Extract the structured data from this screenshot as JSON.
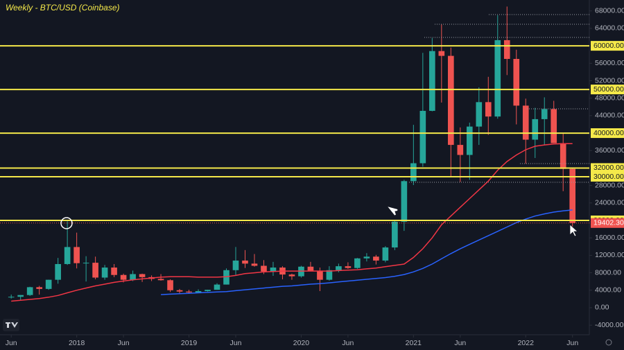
{
  "chart_data": {
    "type": "candlestick",
    "title": "Weekly - BTC/USD (Coinbase)",
    "x": [
      "2017-06",
      "2017-07",
      "2017-08",
      "2017-09",
      "2017-10",
      "2017-11",
      "2017-12",
      "2018-01",
      "2018-02",
      "2018-03",
      "2018-04",
      "2018-05",
      "2018-06",
      "2018-07",
      "2018-08",
      "2018-09",
      "2018-10",
      "2018-11",
      "2018-12",
      "2019-01",
      "2019-02",
      "2019-03",
      "2019-04",
      "2019-05",
      "2019-06",
      "2019-07",
      "2019-08",
      "2019-09",
      "2019-10",
      "2019-11",
      "2019-12",
      "2020-01",
      "2020-02",
      "2020-03",
      "2020-04",
      "2020-05",
      "2020-06",
      "2020-07",
      "2020-08",
      "2020-09",
      "2020-10",
      "2020-11",
      "2020-12",
      "2021-01",
      "2021-02",
      "2021-03",
      "2021-04",
      "2021-05",
      "2021-06",
      "2021-07",
      "2021-08",
      "2021-09",
      "2021-10",
      "2021-11",
      "2021-12",
      "2022-01",
      "2022-02",
      "2022-03",
      "2022-04",
      "2022-05",
      "2022-06"
    ],
    "open": [
      2400,
      2500,
      2900,
      4700,
      4300,
      6400,
      10000,
      13900,
      10200,
      10300,
      6900,
      9200,
      7500,
      6400,
      7700,
      7000,
      6600,
      6300,
      4000,
      3700,
      3500,
      3800,
      4100,
      5300,
      8600,
      10800,
      10100,
      9600,
      8300,
      9200,
      7600,
      7200,
      9400,
      8500,
      6400,
      8600,
      9500,
      9100,
      11300,
      11700,
      10800,
      13800,
      19700,
      29000,
      33100,
      45100,
      58800,
      57700,
      37300,
      35000,
      41500,
      47100,
      43800,
      61300,
      57000,
      46300,
      38500,
      43200,
      45500,
      37700,
      31800
    ],
    "high": [
      3000,
      2900,
      4800,
      5000,
      6400,
      11400,
      19800,
      17200,
      11800,
      11700,
      9800,
      10000,
      7800,
      8500,
      7800,
      7400,
      7700,
      6500,
      4300,
      4100,
      4200,
      4100,
      5600,
      9000,
      13900,
      13200,
      12300,
      10900,
      10500,
      9500,
      7800,
      9600,
      10500,
      9200,
      9500,
      10100,
      10400,
      11400,
      12500,
      12100,
      14100,
      19900,
      29300,
      41900,
      58400,
      61800,
      64900,
      59600,
      41300,
      42400,
      50500,
      52900,
      67000,
      69000,
      59100,
      47900,
      45800,
      48200,
      47400,
      40000,
      31900
    ],
    "low": [
      2100,
      1800,
      2700,
      3000,
      4100,
      5500,
      9800,
      9000,
      6000,
      6500,
      6400,
      7000,
      5800,
      6100,
      5900,
      6100,
      6200,
      3600,
      3100,
      3400,
      3400,
      3700,
      4100,
      5300,
      7500,
      9100,
      9400,
      7700,
      7300,
      6500,
      6400,
      6900,
      8500,
      3800,
      6200,
      8100,
      8900,
      8900,
      10600,
      9900,
      10400,
      13200,
      17600,
      28100,
      32300,
      45000,
      47000,
      30000,
      28800,
      29300,
      37300,
      39600,
      43300,
      53300,
      42000,
      33000,
      34300,
      37200,
      37700,
      26700,
      17600
    ],
    "close": [
      2500,
      2900,
      4700,
      4300,
      6400,
      10000,
      13900,
      10200,
      10300,
      6900,
      9200,
      7500,
      6400,
      7700,
      7000,
      6600,
      6300,
      4000,
      3700,
      3500,
      3800,
      4100,
      5300,
      8600,
      10800,
      10100,
      9600,
      8300,
      9200,
      7600,
      7200,
      9400,
      8500,
      6400,
      8600,
      9500,
      9100,
      11300,
      11700,
      10800,
      13800,
      19700,
      29000,
      33100,
      45100,
      58800,
      57700,
      37300,
      35000,
      41500,
      47100,
      43800,
      61300,
      57000,
      46300,
      38500,
      43200,
      45500,
      37700,
      31800,
      19400
    ],
    "up_color": "#26a69a",
    "down_color": "#ef5350",
    "series": [
      {
        "color": "#f23645",
        "values": [
          1500,
          1700,
          1900,
          2100,
          2400,
          2800,
          3400,
          4000,
          4500,
          5000,
          5400,
          5800,
          6100,
          6400,
          6600,
          6800,
          7000,
          7100,
          7100,
          7100,
          7000,
          7000,
          7000,
          7100,
          7400,
          7800,
          8000,
          8200,
          8300,
          8400,
          8400,
          8400,
          8400,
          8400,
          8400,
          8500,
          8600,
          8700,
          8900,
          9100,
          9400,
          9700,
          10000,
          11500,
          13500,
          16000,
          19000,
          21000,
          23000,
          25000,
          27000,
          29000,
          31500,
          33500,
          35000,
          36200,
          37000,
          37300,
          37500,
          37600,
          37600
        ]
      },
      {
        "color": "#2962ff",
        "values": [
          null,
          null,
          null,
          null,
          null,
          null,
          null,
          null,
          null,
          null,
          null,
          null,
          null,
          null,
          null,
          null,
          3000,
          3100,
          3200,
          3300,
          3400,
          3500,
          3600,
          3700,
          3900,
          4100,
          4300,
          4500,
          4700,
          4900,
          5000,
          5200,
          5400,
          5500,
          5700,
          5900,
          6100,
          6300,
          6500,
          6700,
          6900,
          7200,
          7600,
          8200,
          9000,
          10000,
          11200,
          12400,
          13500,
          14500,
          15500,
          16500,
          17500,
          18500,
          19500,
          20300,
          21000,
          21500,
          21900,
          22200,
          22400
        ]
      }
    ],
    "levels": [
      {
        "value": 60000,
        "label": "60000.00"
      },
      {
        "value": 50000,
        "label": "50000.00"
      },
      {
        "value": 40000,
        "label": "40000.00"
      },
      {
        "value": 32000,
        "label": "32000.00"
      },
      {
        "value": 30000,
        "label": "30000.00"
      },
      {
        "value": 20000,
        "label": "20000.00"
      }
    ],
    "level_color": "#f5e94a",
    "last_price": {
      "value": 19402.3,
      "label": "19402.30"
    },
    "ylim": [
      -6200,
      70500
    ],
    "yticks": [
      {
        "value": -4000,
        "label": "-4000.00"
      },
      {
        "value": 0,
        "label": "0.00"
      },
      {
        "value": 4000,
        "label": "4000.00"
      },
      {
        "value": 8000,
        "label": "8000.00"
      },
      {
        "value": 12000,
        "label": "12000.00"
      },
      {
        "value": 16000,
        "label": "16000.00"
      },
      {
        "value": 24000,
        "label": "24000.00"
      },
      {
        "value": 28000,
        "label": "28000.00"
      },
      {
        "value": 36000,
        "label": "36000.00"
      },
      {
        "value": 44000,
        "label": "44000.00"
      },
      {
        "value": 48000,
        "label": "48000.00"
      },
      {
        "value": 52000,
        "label": "52000.00"
      },
      {
        "value": 56000,
        "label": "56000.00"
      },
      {
        "value": 64000,
        "label": "64000.00"
      },
      {
        "value": 68000,
        "label": "68000.00"
      }
    ],
    "xlim": [
      "2017-05-10",
      "2022-08-10"
    ],
    "xticks": [
      {
        "value": "2017-06",
        "label": "Jun"
      },
      {
        "value": "2018-01",
        "label": "2018"
      },
      {
        "value": "2018-06",
        "label": "Jun"
      },
      {
        "value": "2019-01",
        "label": "2019"
      },
      {
        "value": "2019-06",
        "label": "Jun"
      },
      {
        "value": "2020-01",
        "label": "2020"
      },
      {
        "value": "2020-06",
        "label": "Jun"
      },
      {
        "value": "2021-01",
        "label": "2021"
      },
      {
        "value": "2021-06",
        "label": "Jun"
      },
      {
        "value": "2022-01",
        "label": "2022"
      },
      {
        "value": "2022-06",
        "label": "Jun"
      }
    ],
    "grid": false
  }
}
